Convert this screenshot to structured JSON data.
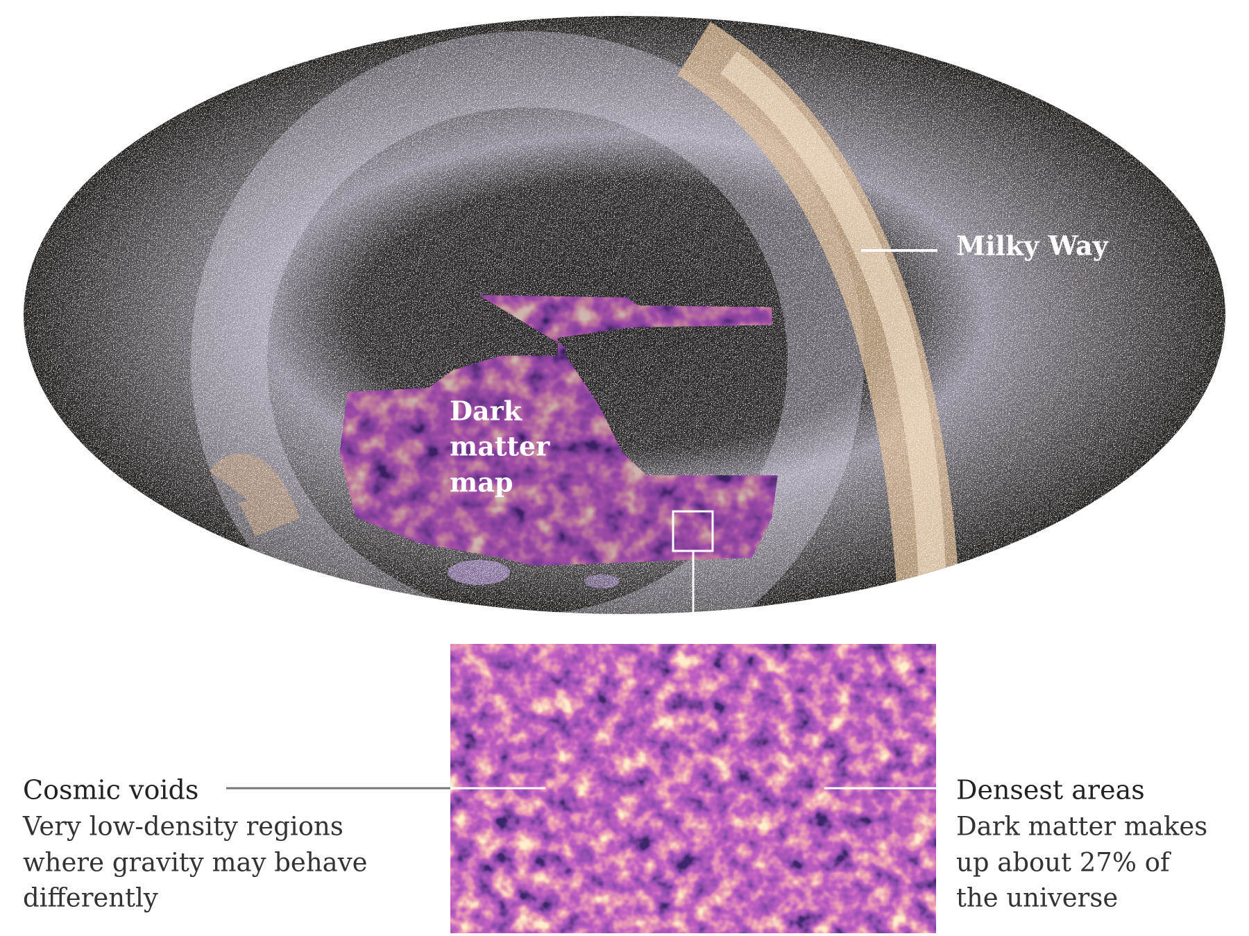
{
  "labels": {
    "milky_way": "Milky Way",
    "dark_matter_map": [
      "Dark",
      "matter",
      "map"
    ],
    "cosmic_voids": {
      "title": "Cosmic voids",
      "description": [
        "Very low-density regions",
        "where gravity may behave",
        "differently"
      ]
    },
    "densest_areas": {
      "title": "Densest areas",
      "description": [
        "Dark matter makes",
        "up about 27% of",
        "the universe"
      ]
    }
  }
}
